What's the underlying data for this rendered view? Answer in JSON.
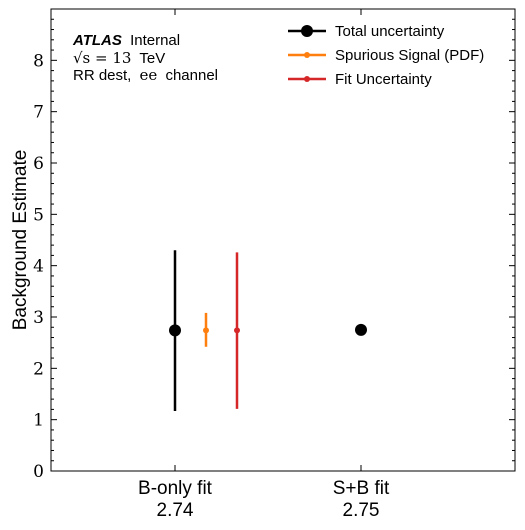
{
  "chart_data": {
    "type": "scatter",
    "title": "",
    "xlabel": "",
    "ylabel": "Background Estimate",
    "ylim": [
      0,
      9
    ],
    "y_ticks": [
      0,
      1,
      2,
      3,
      4,
      5,
      6,
      7,
      8
    ],
    "y_tick_labels": [
      "0",
      "1",
      "2",
      "3",
      "4",
      "5",
      "6",
      "7",
      "8"
    ],
    "grid": false,
    "legend_position": "top-right",
    "categories": [
      {
        "label": "B-only fit",
        "value_label": "2.74"
      },
      {
        "label": "S+B fit",
        "value_label": "2.75"
      }
    ],
    "series": [
      {
        "name": "Total uncertainty",
        "color": "#000000",
        "marker": "circle-large",
        "points": [
          {
            "category": "B-only fit",
            "y": 2.74,
            "ylow": 1.17,
            "yhigh": 4.3
          },
          {
            "category": "S+B fit",
            "y": 2.75,
            "ylow": null,
            "yhigh": null
          }
        ]
      },
      {
        "name": "Spurious Signal (PDF)",
        "color": "#ff7f0e",
        "marker": "circle-small",
        "points": [
          {
            "category": "B-only fit",
            "y": 2.74,
            "ylow": 2.42,
            "yhigh": 3.08
          }
        ]
      },
      {
        "name": "Fit Uncertainty",
        "color": "#d62728",
        "marker": "circle-small",
        "points": [
          {
            "category": "B-only fit",
            "y": 2.74,
            "ylow": 1.21,
            "yhigh": 4.26
          }
        ]
      }
    ],
    "annotations": {
      "atlas": "ATLAS",
      "internal": "Internal",
      "energy_prefix": "√s = 13",
      "energy_unit": "TeV",
      "region_prefix": "RR dest,",
      "channel": "ee",
      "region_suffix": "channel"
    }
  }
}
